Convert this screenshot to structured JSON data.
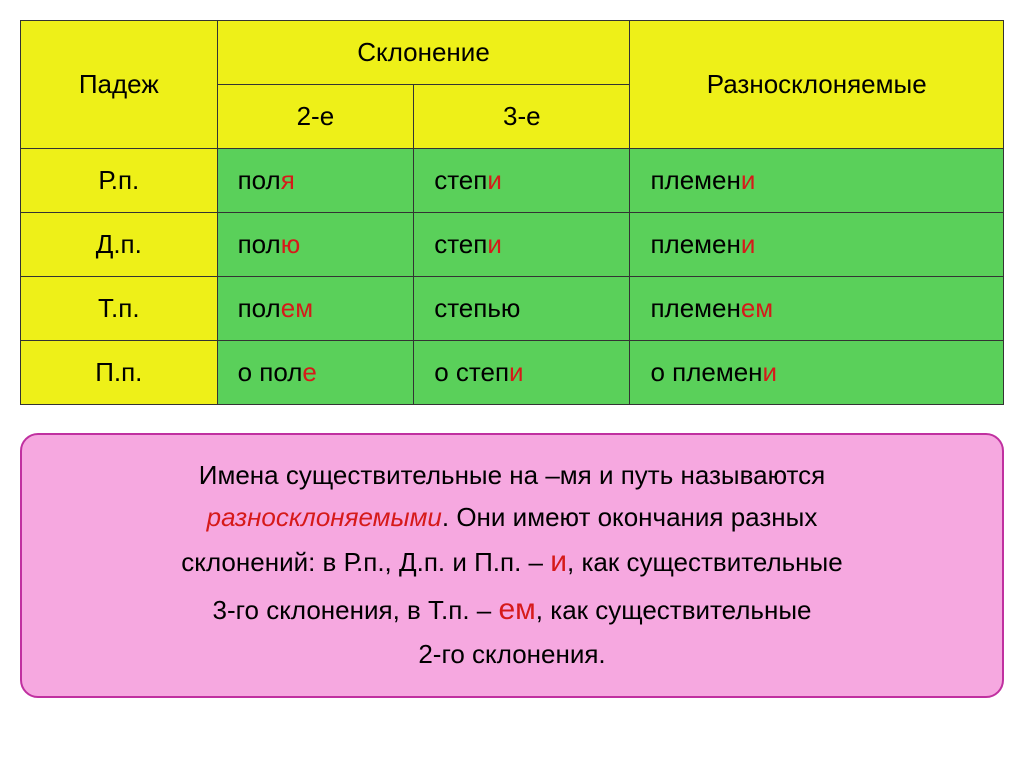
{
  "table": {
    "header": {
      "case": "Падеж",
      "declension": "Склонение",
      "irregular": "Разносклоняемые",
      "d2": "2-е",
      "d3": "3-е"
    },
    "rows": [
      {
        "case": "Р.п.",
        "c1_pre": "пол",
        "c1_hi": "я",
        "c1_suf": "",
        "c2_pre": "степ",
        "c2_hi": "и",
        "c2_suf": "",
        "c3_pre": "племен",
        "c3_hi": "и",
        "c3_suf": ""
      },
      {
        "case": "Д.п.",
        "c1_pre": "пол",
        "c1_hi": "ю",
        "c1_suf": "",
        "c2_pre": "степ",
        "c2_hi": "и",
        "c2_suf": "",
        "c3_pre": "племен",
        "c3_hi": "и",
        "c3_suf": ""
      },
      {
        "case": "Т.п.",
        "c1_pre": "пол",
        "c1_hi": "ем",
        "c1_suf": "",
        "c2_pre": "степ",
        "c2_hi": "",
        "c2_suf": "ью",
        "c3_pre": "племен",
        "c3_hi": "ем",
        "c3_suf": ""
      },
      {
        "case": "П.п.",
        "c1_pre": "о пол",
        "c1_hi": "е",
        "c1_suf": "",
        "c2_pre": "о степ",
        "c2_hi": "и",
        "c2_suf": "",
        "c3_pre": "о племен",
        "c3_hi": "и",
        "c3_suf": ""
      }
    ]
  },
  "rule": {
    "p1a": "Имена существительные на –мя и путь называются ",
    "term": "разносклоняемыми",
    "p1b": ". Они имеют окончания разных",
    "p2a": "склонений: в Р.п., Д.п. и П.п. – ",
    "hi1": "и",
    "p2b": ", как существительные",
    "p3a": "3-го склонения, в Т.п. – ",
    "hi2": "ем",
    "p3b": ", как существительные",
    "p4": "2-го склонения."
  },
  "colors": {
    "yellow": "#eef018",
    "green": "#5ad05a",
    "pink": "#f6a8e0",
    "pink_border": "#c030a0",
    "red": "#d61a1a",
    "border": "#333333"
  }
}
